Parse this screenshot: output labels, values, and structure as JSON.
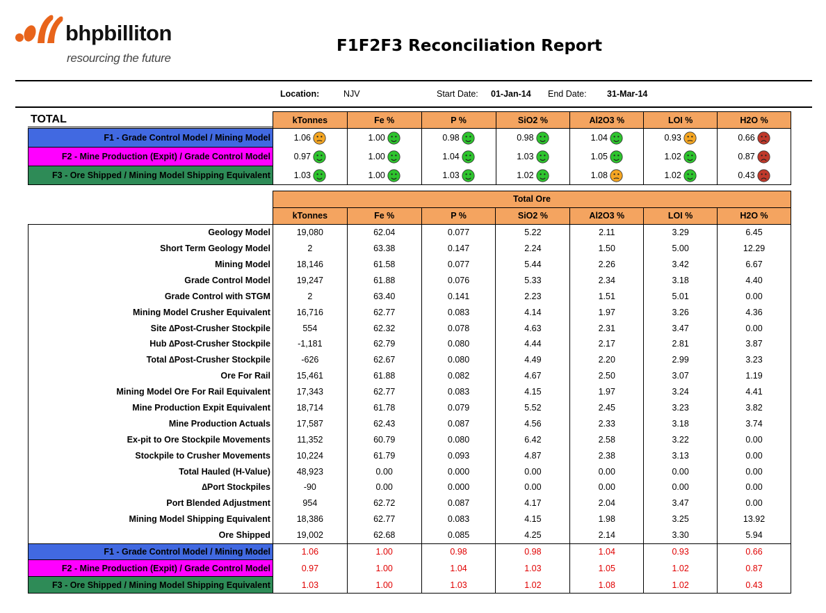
{
  "header": {
    "company_name": "bhpbilliton",
    "tagline": "resourcing the future",
    "title": "F1F2F3 Reconciliation Report"
  },
  "meta": {
    "location_label": "Location:",
    "location_value": "NJV",
    "start_label": "Start Date:",
    "start_value": "01-Jan-14",
    "end_label": "End Date:",
    "end_value": "31-Mar-14"
  },
  "summary": {
    "section_label": "TOTAL",
    "columns": [
      "kTonnes",
      "Fe %",
      "P %",
      "SiO2 %",
      "Al2O3 %",
      "LOI %",
      "H2O %"
    ],
    "rows": [
      {
        "label": "F1 - Grade Control Model / Mining Model",
        "values": [
          "1.06",
          "1.00",
          "0.98",
          "0.98",
          "1.04",
          "0.93",
          "0.66"
        ],
        "status": [
          "orange",
          "green",
          "green",
          "green",
          "green",
          "orange",
          "red"
        ]
      },
      {
        "label": "F2 - Mine Production (Expit) / Grade Control Model",
        "values": [
          "0.97",
          "1.00",
          "1.04",
          "1.03",
          "1.05",
          "1.02",
          "0.87"
        ],
        "status": [
          "green",
          "green",
          "green",
          "green",
          "green",
          "green",
          "red"
        ]
      },
      {
        "label": "F3 - Ore Shipped / Mining Model Shipping Equivalent",
        "values": [
          "1.03",
          "1.00",
          "1.03",
          "1.02",
          "1.08",
          "1.02",
          "0.43"
        ],
        "status": [
          "green",
          "green",
          "green",
          "green",
          "orange",
          "green",
          "red"
        ]
      }
    ]
  },
  "detail": {
    "group_title": "Total Ore",
    "columns": [
      "kTonnes",
      "Fe %",
      "P %",
      "SiO2 %",
      "Al2O3 %",
      "LOI %",
      "H2O %"
    ],
    "rows": [
      {
        "label": "Geology Model",
        "values": [
          "19,080",
          "62.04",
          "0.077",
          "5.22",
          "2.11",
          "3.29",
          "6.45"
        ]
      },
      {
        "label": "Short Term Geology Model",
        "values": [
          "2",
          "63.38",
          "0.147",
          "2.24",
          "1.50",
          "5.00",
          "12.29"
        ]
      },
      {
        "label": "Mining Model",
        "values": [
          "18,146",
          "61.58",
          "0.077",
          "5.44",
          "2.26",
          "3.42",
          "6.67"
        ]
      },
      {
        "label": "Grade Control Model",
        "values": [
          "19,247",
          "61.88",
          "0.076",
          "5.33",
          "2.34",
          "3.18",
          "4.40"
        ]
      },
      {
        "label": "Grade Control with STGM",
        "values": [
          "2",
          "63.40",
          "0.141",
          "2.23",
          "1.51",
          "5.01",
          "0.00"
        ]
      },
      {
        "label": "Mining Model Crusher Equivalent",
        "values": [
          "16,716",
          "62.77",
          "0.083",
          "4.14",
          "1.97",
          "3.26",
          "4.36"
        ]
      },
      {
        "label": "Site ∆Post-Crusher Stockpile",
        "values": [
          "554",
          "62.32",
          "0.078",
          "4.63",
          "2.31",
          "3.47",
          "0.00"
        ]
      },
      {
        "label": "Hub ∆Post-Crusher Stockpile",
        "values": [
          "-1,181",
          "62.79",
          "0.080",
          "4.44",
          "2.17",
          "2.81",
          "3.87"
        ]
      },
      {
        "label": "Total ∆Post-Crusher Stockpile",
        "values": [
          "-626",
          "62.67",
          "0.080",
          "4.49",
          "2.20",
          "2.99",
          "3.23"
        ]
      },
      {
        "label": "Ore For Rail",
        "values": [
          "15,461",
          "61.88",
          "0.082",
          "4.67",
          "2.50",
          "3.07",
          "1.19"
        ]
      },
      {
        "label": "Mining Model Ore For Rail Equivalent",
        "values": [
          "17,343",
          "62.77",
          "0.083",
          "4.15",
          "1.97",
          "3.24",
          "4.41"
        ]
      },
      {
        "label": "Mine Production Expit Equivalent",
        "values": [
          "18,714",
          "61.78",
          "0.079",
          "5.52",
          "2.45",
          "3.23",
          "3.82"
        ]
      },
      {
        "label": "Mine Production Actuals",
        "values": [
          "17,587",
          "62.43",
          "0.087",
          "4.56",
          "2.33",
          "3.18",
          "3.74"
        ]
      },
      {
        "label": "Ex-pit to Ore Stockpile Movements",
        "values": [
          "11,352",
          "60.79",
          "0.080",
          "6.42",
          "2.58",
          "3.22",
          "0.00"
        ]
      },
      {
        "label": "Stockpile to Crusher Movements",
        "values": [
          "10,224",
          "61.79",
          "0.093",
          "4.87",
          "2.38",
          "3.13",
          "0.00"
        ]
      },
      {
        "label": "Total Hauled (H-Value)",
        "values": [
          "48,923",
          "0.00",
          "0.000",
          "0.00",
          "0.00",
          "0.00",
          "0.00"
        ]
      },
      {
        "label": "∆Port Stockpiles",
        "values": [
          "-90",
          "0.00",
          "0.000",
          "0.00",
          "0.00",
          "0.00",
          "0.00"
        ]
      },
      {
        "label": "Port Blended Adjustment",
        "values": [
          "954",
          "62.72",
          "0.087",
          "4.17",
          "2.04",
          "3.47",
          "0.00"
        ]
      },
      {
        "label": "Mining Model Shipping Equivalent",
        "values": [
          "18,386",
          "62.77",
          "0.083",
          "4.15",
          "1.98",
          "3.25",
          "13.92"
        ]
      },
      {
        "label": "Ore Shipped",
        "values": [
          "19,002",
          "62.68",
          "0.085",
          "4.25",
          "2.14",
          "3.30",
          "5.94"
        ]
      }
    ],
    "factor_rows": [
      {
        "label": "F1 - Grade Control Model / Mining Model",
        "values": [
          "1.06",
          "1.00",
          "0.98",
          "0.98",
          "1.04",
          "0.93",
          "0.66"
        ]
      },
      {
        "label": "F2 - Mine Production (Expit) / Grade Control Model",
        "values": [
          "0.97",
          "1.00",
          "1.04",
          "1.03",
          "1.05",
          "1.02",
          "0.87"
        ]
      },
      {
        "label": "F3 - Ore Shipped / Mining Model Shipping Equivalent",
        "values": [
          "1.03",
          "1.00",
          "1.03",
          "1.02",
          "1.08",
          "1.02",
          "0.43"
        ]
      }
    ]
  },
  "colors": {
    "header_fill": "#f4a460",
    "f1_fill": "#4169e1",
    "f2_fill": "#ff00ff",
    "f3_fill": "#2e8b57",
    "factor_text": "#e00000",
    "status_green": "#2ec42e",
    "status_orange": "#f5a623",
    "status_red": "#c0392b"
  }
}
